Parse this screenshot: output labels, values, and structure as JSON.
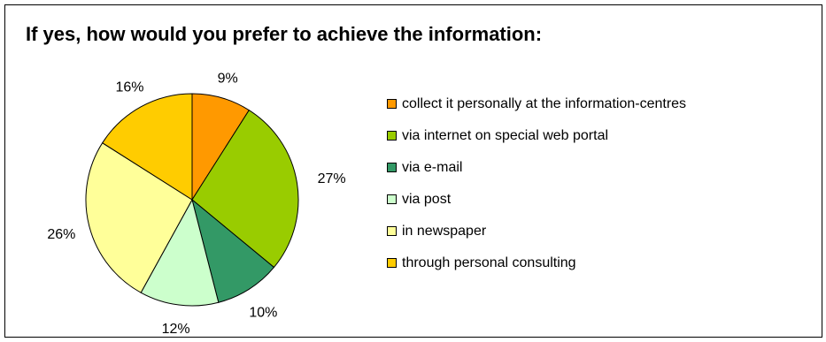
{
  "chart_data": {
    "type": "pie",
    "title": "If yes, how would you prefer to achieve the information:",
    "legend_position": "right",
    "slices": [
      {
        "label": "collect it personally at the information-centres",
        "value": 9,
        "value_label": "9%",
        "color": "#FF9900"
      },
      {
        "label": "via internet on special web portal",
        "value": 27,
        "value_label": "27%",
        "color": "#99CC00"
      },
      {
        "label": "via e-mail",
        "value": 10,
        "value_label": "10%",
        "color": "#339966"
      },
      {
        "label": "via post",
        "value": 12,
        "value_label": "12%",
        "color": "#CCFFCC"
      },
      {
        "label": "in newspaper",
        "value": 26,
        "value_label": "26%",
        "color": "#FFFF99"
      },
      {
        "label": "through personal consulting",
        "value": 16,
        "value_label": "16%",
        "color": "#FFCC00"
      }
    ]
  }
}
